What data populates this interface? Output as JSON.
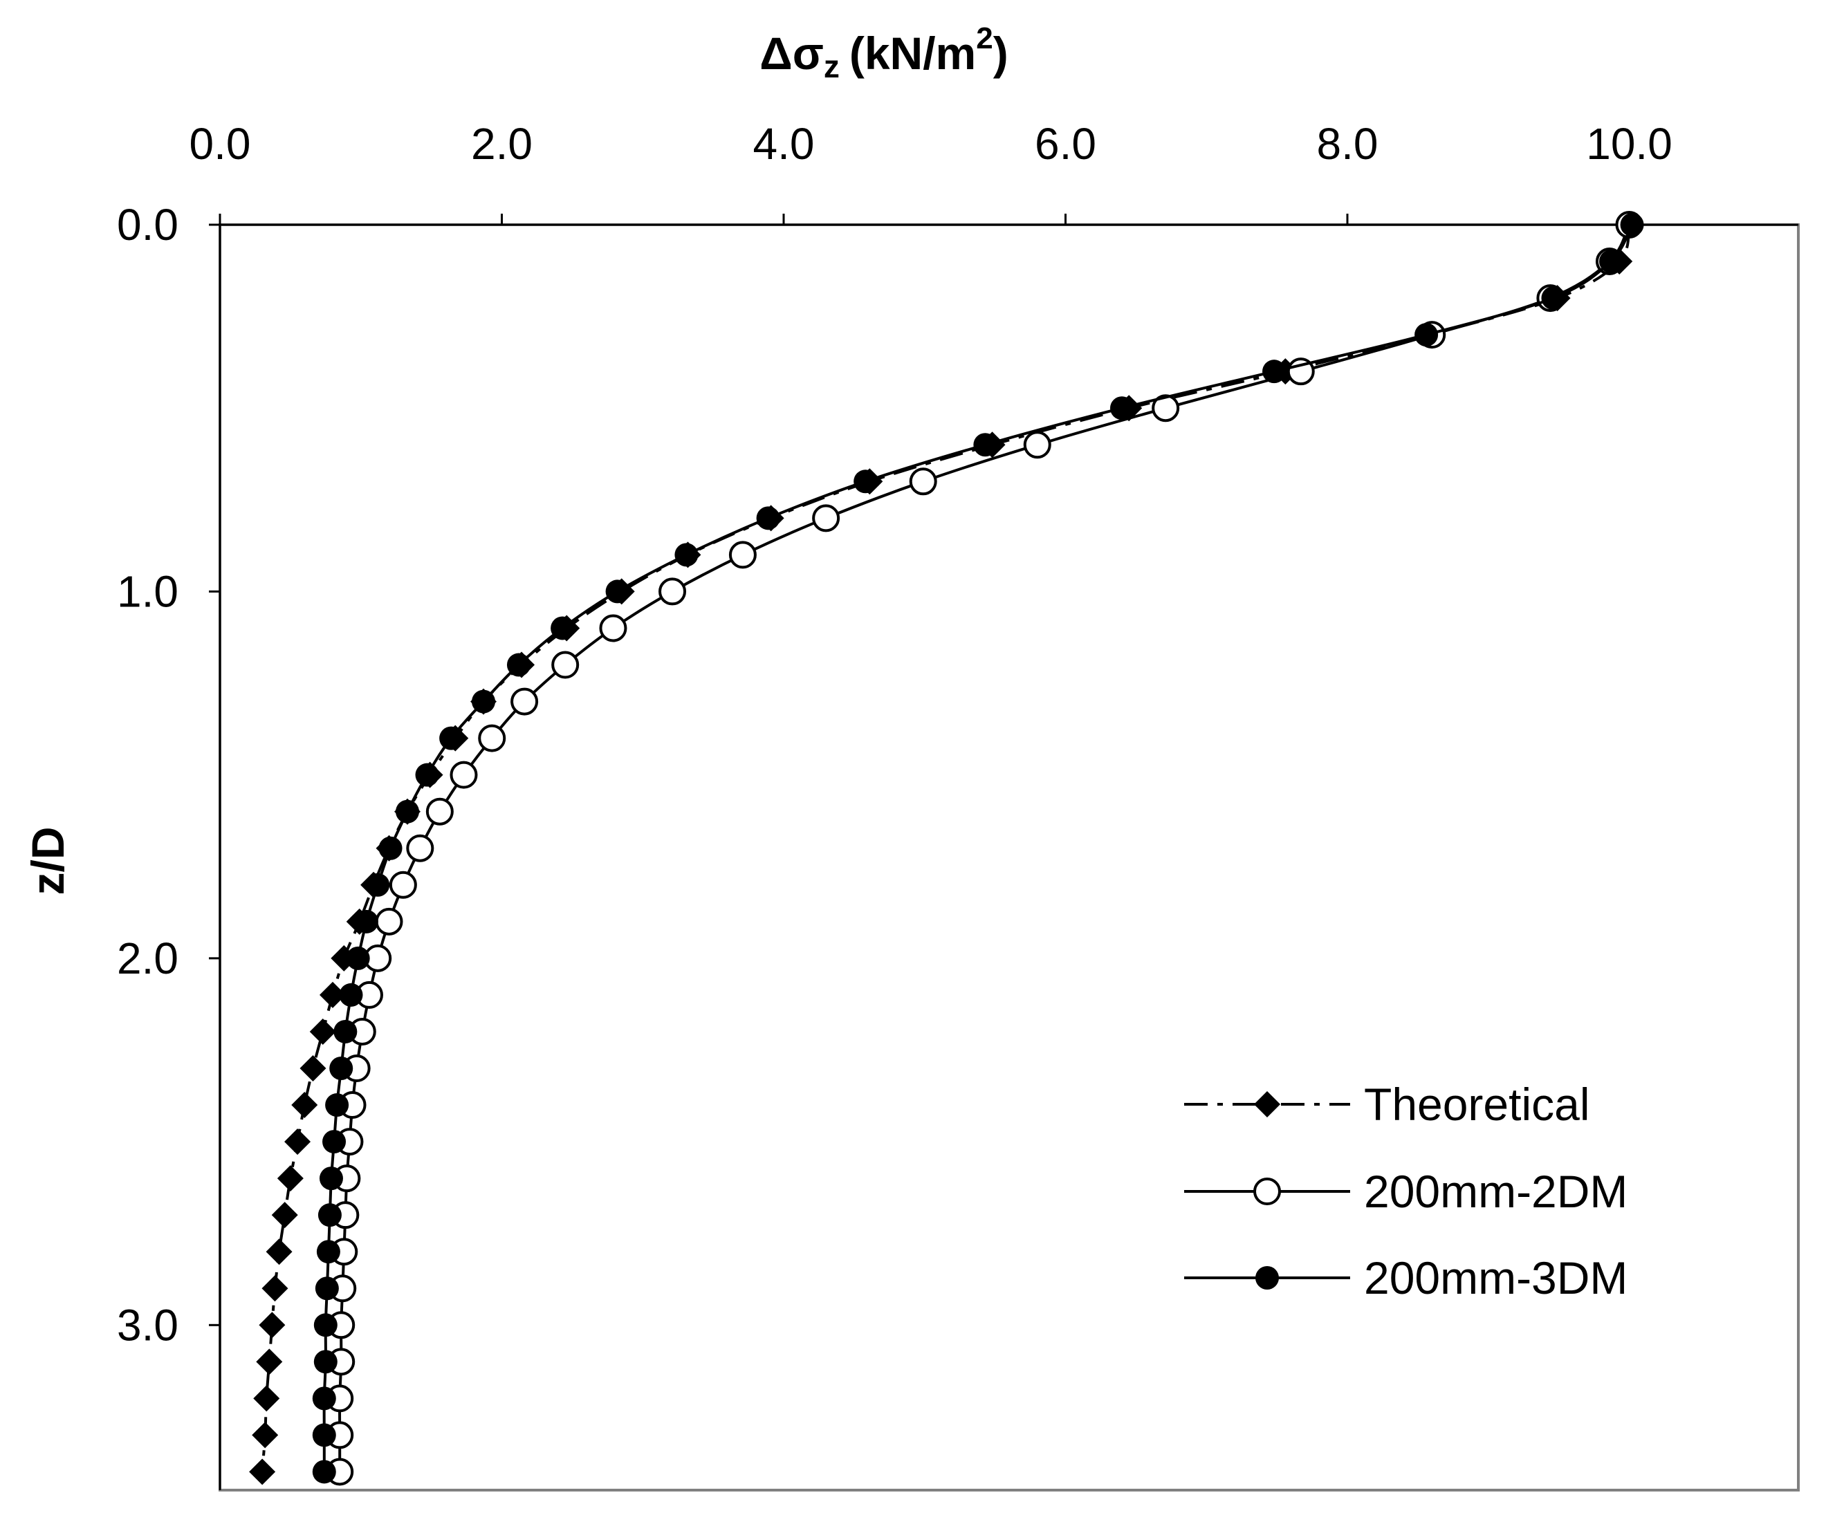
{
  "chart_data": {
    "type": "line",
    "title": "",
    "xlabel_parts": {
      "delta": "Δσ",
      "sub": "z",
      "units": "(kN/m",
      "sup": "2",
      "close": ")"
    },
    "xlabel": "Δσz (kN/m2)",
    "ylabel": "z/D",
    "xlim": [
      0.0,
      11.2
    ],
    "ylim": [
      0.0,
      3.45
    ],
    "y_reversed": true,
    "x_axis_position": "top",
    "x_ticks": [
      0.0,
      2.0,
      4.0,
      6.0,
      8.0,
      10.0
    ],
    "x_tick_labels": [
      "0.0",
      "2.0",
      "4.0",
      "6.0",
      "8.0",
      "10.0"
    ],
    "y_ticks": [
      0.0,
      1.0,
      2.0,
      3.0
    ],
    "y_tick_labels": [
      "0.0",
      "1.0",
      "2.0",
      "3.0"
    ],
    "legend_position": "lower-right",
    "series": [
      {
        "name": "Theoretical",
        "line": "dash-dot",
        "marker": "diamond",
        "y": [
          0.0,
          0.1,
          0.2,
          0.3,
          0.4,
          0.5,
          0.6,
          0.7,
          0.8,
          0.9,
          1.0,
          1.1,
          1.2,
          1.3,
          1.4,
          1.5,
          1.6,
          1.7,
          1.8,
          1.9,
          2.0,
          2.1,
          2.2,
          2.3,
          2.4,
          2.5,
          2.6,
          2.7,
          2.8,
          2.9,
          3.0,
          3.1,
          3.2,
          3.3,
          3.4
        ],
        "x": [
          10.0,
          9.93,
          9.49,
          8.58,
          7.56,
          6.45,
          5.48,
          4.61,
          3.91,
          3.32,
          2.85,
          2.46,
          2.14,
          1.87,
          1.67,
          1.49,
          1.33,
          1.2,
          1.09,
          0.99,
          0.88,
          0.8,
          0.73,
          0.66,
          0.6,
          0.55,
          0.5,
          0.46,
          0.42,
          0.39,
          0.37,
          0.35,
          0.33,
          0.32,
          0.3
        ]
      },
      {
        "name": "200mm-2DM",
        "line": "solid",
        "marker": "open-circle",
        "y": [
          0.0,
          0.1,
          0.2,
          0.3,
          0.4,
          0.5,
          0.6,
          0.7,
          0.8,
          0.9,
          1.0,
          1.1,
          1.2,
          1.3,
          1.4,
          1.5,
          1.6,
          1.7,
          1.8,
          1.9,
          2.0,
          2.1,
          2.2,
          2.3,
          2.4,
          2.5,
          2.6,
          2.7,
          2.8,
          2.9,
          3.0,
          3.1,
          3.2,
          3.3,
          3.4
        ],
        "x": [
          10.0,
          9.86,
          9.44,
          8.6,
          7.67,
          6.71,
          5.8,
          4.99,
          4.3,
          3.71,
          3.21,
          2.79,
          2.45,
          2.16,
          1.93,
          1.73,
          1.56,
          1.42,
          1.3,
          1.2,
          1.12,
          1.06,
          1.01,
          0.97,
          0.94,
          0.92,
          0.9,
          0.89,
          0.88,
          0.87,
          0.86,
          0.86,
          0.85,
          0.85,
          0.85
        ]
      },
      {
        "name": "200mm-3DM",
        "line": "solid",
        "marker": "filled-circle",
        "y": [
          0.0,
          0.1,
          0.2,
          0.3,
          0.4,
          0.5,
          0.6,
          0.7,
          0.8,
          0.9,
          1.0,
          1.1,
          1.2,
          1.3,
          1.4,
          1.5,
          1.6,
          1.7,
          1.8,
          1.9,
          2.0,
          2.1,
          2.2,
          2.3,
          2.4,
          2.5,
          2.6,
          2.7,
          2.8,
          2.9,
          3.0,
          3.1,
          3.2,
          3.3,
          3.4
        ],
        "x": [
          10.02,
          9.87,
          9.46,
          8.56,
          7.48,
          6.4,
          5.43,
          4.58,
          3.89,
          3.31,
          2.82,
          2.43,
          2.12,
          1.87,
          1.64,
          1.47,
          1.33,
          1.21,
          1.12,
          1.04,
          0.98,
          0.93,
          0.89,
          0.86,
          0.83,
          0.81,
          0.79,
          0.78,
          0.77,
          0.76,
          0.75,
          0.75,
          0.74,
          0.74,
          0.74
        ]
      }
    ]
  }
}
